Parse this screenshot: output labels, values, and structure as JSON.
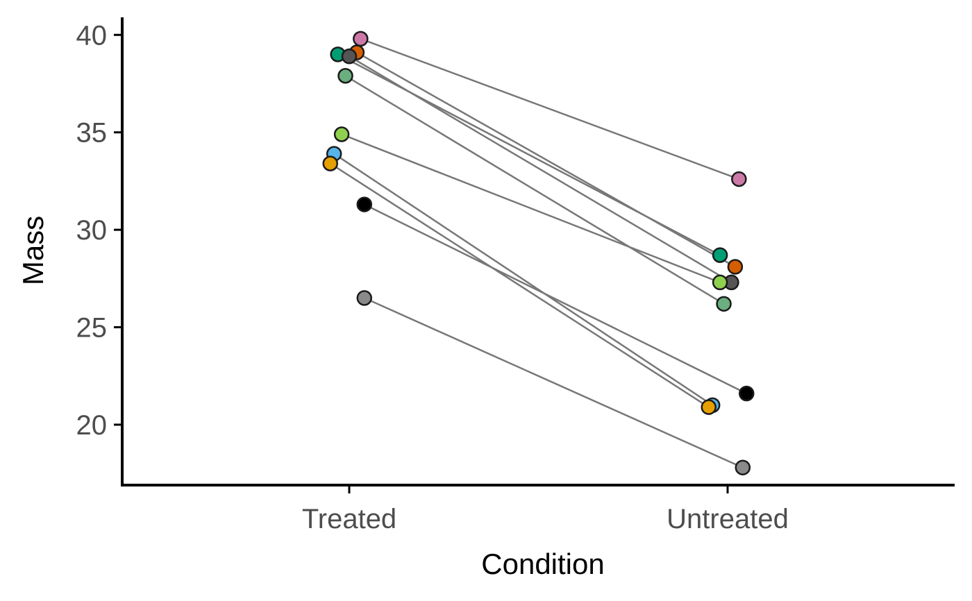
{
  "chart_data": {
    "type": "scatter",
    "title": "",
    "xlabel": "Condition",
    "ylabel": "Mass",
    "categories": [
      "Treated",
      "Untreated"
    ],
    "ylim": [
      16.9,
      40.9
    ],
    "yticks": [
      20,
      25,
      30,
      35,
      40
    ],
    "grid": false,
    "legend": "none",
    "line_color": "#777777",
    "point_edge_color": "#1a1a1a",
    "pairs": [
      {
        "color": "#CC79A7",
        "treated": 39.8,
        "untreated": 32.6,
        "jitter_treated": 0.03,
        "jitter_untreated": 0.03
      },
      {
        "color": "#009E73",
        "treated": 39.0,
        "untreated": 28.7,
        "jitter_treated": -0.03,
        "jitter_untreated": -0.02
      },
      {
        "color": "#D55E00",
        "treated": 39.1,
        "untreated": 28.1,
        "jitter_treated": 0.02,
        "jitter_untreated": 0.02
      },
      {
        "color": "#555555",
        "treated": 38.9,
        "untreated": 27.3,
        "jitter_treated": 0.0,
        "jitter_untreated": 0.01
      },
      {
        "color": "#6BAE7F",
        "treated": 37.9,
        "untreated": 26.2,
        "jitter_treated": -0.01,
        "jitter_untreated": -0.01
      },
      {
        "color": "#8FD14F",
        "treated": 34.9,
        "untreated": 27.3,
        "jitter_treated": -0.02,
        "jitter_untreated": -0.02
      },
      {
        "color": "#56B4E9",
        "treated": 33.9,
        "untreated": 21.0,
        "jitter_treated": -0.04,
        "jitter_untreated": -0.04
      },
      {
        "color": "#E69F00",
        "treated": 33.4,
        "untreated": 20.9,
        "jitter_treated": -0.05,
        "jitter_untreated": -0.05
      },
      {
        "color": "#000000",
        "treated": 31.3,
        "untreated": 21.6,
        "jitter_treated": 0.04,
        "jitter_untreated": 0.05
      },
      {
        "color": "#8a8a8a",
        "treated": 26.5,
        "untreated": 17.8,
        "jitter_treated": 0.04,
        "jitter_untreated": 0.04
      }
    ]
  }
}
